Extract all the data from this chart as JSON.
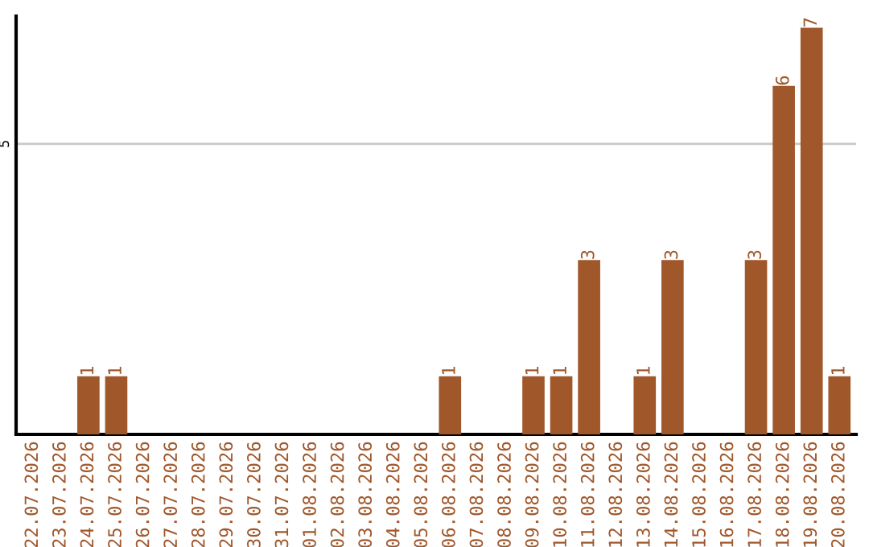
{
  "chart_data": {
    "type": "bar",
    "categories": [
      "22.07.2026",
      "23.07.2026",
      "24.07.2026",
      "25.07.2026",
      "26.07.2026",
      "27.07.2026",
      "28.07.2026",
      "29.07.2026",
      "30.07.2026",
      "31.07.2026",
      "01.08.2026",
      "02.08.2026",
      "03.08.2026",
      "04.08.2026",
      "05.08.2026",
      "06.08.2026",
      "07.08.2026",
      "08.08.2026",
      "09.08.2026",
      "10.08.2026",
      "11.08.2026",
      "12.08.2026",
      "13.08.2026",
      "14.08.2026",
      "15.08.2026",
      "16.08.2026",
      "17.08.2026",
      "18.08.2026",
      "19.08.2026",
      "20.08.2026"
    ],
    "values": [
      0,
      0,
      1,
      1,
      0,
      0,
      0,
      0,
      0,
      0,
      0,
      0,
      0,
      0,
      0,
      1,
      0,
      0,
      1,
      1,
      3,
      0,
      1,
      3,
      0,
      0,
      3,
      6,
      7,
      1
    ],
    "value_labels": [
      null,
      null,
      "1",
      "1",
      null,
      null,
      null,
      null,
      null,
      null,
      null,
      null,
      null,
      null,
      null,
      "1",
      null,
      null,
      "1",
      "1",
      "3",
      null,
      "1",
      "3",
      null,
      null,
      "3",
      "6",
      "7",
      "1"
    ],
    "color": "#a0572a",
    "ylim": [
      0,
      7.2
    ],
    "yticks": [
      5
    ],
    "grid": "y"
  }
}
